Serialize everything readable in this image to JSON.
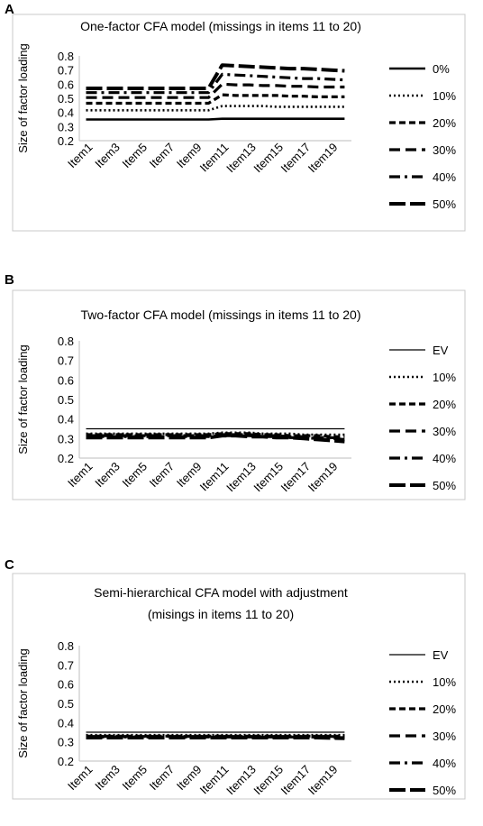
{
  "panels": [
    {
      "letter": "A"
    },
    {
      "letter": "B"
    },
    {
      "letter": "C"
    }
  ],
  "chart_data": [
    {
      "type": "line",
      "title": "One-factor CFA model (missings in items 11 to 20)",
      "title_lines": [
        "One-factor CFA model (missings in items 11 to 20)"
      ],
      "ylabel": "Size of factor loading",
      "xlabel": "",
      "ylim": [
        0.2,
        0.8
      ],
      "yticks": [
        "0.2",
        "0.3",
        "0.4",
        "0.5",
        "0.6",
        "0.7",
        "0.8"
      ],
      "categories": [
        "Item1",
        "Item2",
        "Item3",
        "Item4",
        "Item5",
        "Item6",
        "Item7",
        "Item8",
        "Item9",
        "Item10",
        "Item11",
        "Item12",
        "Item13",
        "Item14",
        "Item15",
        "Item16",
        "Item17",
        "Item18",
        "Item19",
        "Item20"
      ],
      "xtick_labels": [
        "Item1",
        "Item3",
        "Item5",
        "Item7",
        "Item9",
        "Item11",
        "Item13",
        "Item15",
        "Item17",
        "Item19"
      ],
      "grid": false,
      "legend_position": "right",
      "series": [
        {
          "name": "0%",
          "style": "solid",
          "values": [
            0.35,
            0.35,
            0.35,
            0.35,
            0.35,
            0.35,
            0.35,
            0.35,
            0.35,
            0.35,
            0.355,
            0.355,
            0.355,
            0.355,
            0.355,
            0.355,
            0.355,
            0.355,
            0.355,
            0.355
          ]
        },
        {
          "name": "10%",
          "style": "dotted",
          "values": [
            0.415,
            0.415,
            0.415,
            0.415,
            0.415,
            0.415,
            0.415,
            0.415,
            0.415,
            0.415,
            0.445,
            0.445,
            0.445,
            0.445,
            0.44,
            0.44,
            0.44,
            0.44,
            0.44,
            0.44
          ]
        },
        {
          "name": "20%",
          "style": "dashed",
          "values": [
            0.465,
            0.465,
            0.465,
            0.465,
            0.465,
            0.465,
            0.465,
            0.465,
            0.465,
            0.465,
            0.525,
            0.52,
            0.52,
            0.52,
            0.52,
            0.515,
            0.515,
            0.51,
            0.51,
            0.51
          ]
        },
        {
          "name": "30%",
          "style": "longdash",
          "values": [
            0.505,
            0.505,
            0.505,
            0.505,
            0.505,
            0.505,
            0.505,
            0.505,
            0.505,
            0.505,
            0.6,
            0.595,
            0.595,
            0.59,
            0.59,
            0.585,
            0.585,
            0.58,
            0.58,
            0.58
          ]
        },
        {
          "name": "40%",
          "style": "dashdot",
          "values": [
            0.54,
            0.54,
            0.54,
            0.54,
            0.54,
            0.54,
            0.54,
            0.54,
            0.54,
            0.54,
            0.67,
            0.665,
            0.66,
            0.655,
            0.65,
            0.645,
            0.64,
            0.64,
            0.635,
            0.63
          ]
        },
        {
          "name": "50%",
          "style": "heavylong",
          "values": [
            0.57,
            0.57,
            0.57,
            0.57,
            0.57,
            0.57,
            0.57,
            0.57,
            0.57,
            0.57,
            0.735,
            0.73,
            0.725,
            0.72,
            0.715,
            0.71,
            0.71,
            0.705,
            0.7,
            0.695
          ]
        }
      ]
    },
    {
      "type": "line",
      "title": "Two-factor CFA model (missings in items 11 to 20)",
      "title_lines": [
        "Two-factor CFA model (missings in items 11 to 20)"
      ],
      "ylabel": "Size of factor loading",
      "xlabel": "",
      "ylim": [
        0.2,
        0.8
      ],
      "yticks": [
        "0.2",
        "0.3",
        "0.4",
        "0.5",
        "0.6",
        "0.7",
        "0.8"
      ],
      "categories": [
        "Item1",
        "Item2",
        "Item3",
        "Item4",
        "Item5",
        "Item6",
        "Item7",
        "Item8",
        "Item9",
        "Item10",
        "Item11",
        "Item12",
        "Item13",
        "Item14",
        "Item15",
        "Item16",
        "Item17",
        "Item18",
        "Item19",
        "Item20"
      ],
      "xtick_labels": [
        "Item1",
        "Item3",
        "Item5",
        "Item7",
        "Item9",
        "Item11",
        "Item13",
        "Item15",
        "Item17",
        "Item19"
      ],
      "grid": false,
      "legend_position": "right",
      "series": [
        {
          "name": "EV",
          "style": "thin",
          "values": [
            0.35,
            0.35,
            0.35,
            0.35,
            0.35,
            0.35,
            0.35,
            0.35,
            0.35,
            0.35,
            0.35,
            0.35,
            0.35,
            0.35,
            0.35,
            0.35,
            0.35,
            0.35,
            0.35,
            0.35
          ]
        },
        {
          "name": "10%",
          "style": "dotted",
          "values": [
            0.325,
            0.325,
            0.325,
            0.325,
            0.325,
            0.325,
            0.325,
            0.325,
            0.325,
            0.325,
            0.33,
            0.33,
            0.33,
            0.325,
            0.325,
            0.325,
            0.32,
            0.32,
            0.32,
            0.32
          ]
        },
        {
          "name": "20%",
          "style": "dashed",
          "values": [
            0.32,
            0.32,
            0.32,
            0.32,
            0.32,
            0.32,
            0.32,
            0.32,
            0.32,
            0.32,
            0.325,
            0.325,
            0.325,
            0.32,
            0.32,
            0.315,
            0.315,
            0.315,
            0.31,
            0.31
          ]
        },
        {
          "name": "30%",
          "style": "longdash",
          "values": [
            0.315,
            0.315,
            0.315,
            0.315,
            0.315,
            0.315,
            0.315,
            0.315,
            0.315,
            0.315,
            0.32,
            0.32,
            0.32,
            0.315,
            0.315,
            0.31,
            0.31,
            0.305,
            0.305,
            0.3
          ]
        },
        {
          "name": "40%",
          "style": "dashdot",
          "values": [
            0.31,
            0.31,
            0.31,
            0.31,
            0.31,
            0.31,
            0.31,
            0.31,
            0.31,
            0.31,
            0.315,
            0.315,
            0.315,
            0.31,
            0.31,
            0.305,
            0.305,
            0.3,
            0.3,
            0.295
          ]
        },
        {
          "name": "50%",
          "style": "heavylong",
          "values": [
            0.305,
            0.305,
            0.305,
            0.305,
            0.305,
            0.305,
            0.305,
            0.305,
            0.305,
            0.305,
            0.315,
            0.315,
            0.31,
            0.31,
            0.305,
            0.305,
            0.3,
            0.295,
            0.29,
            0.285
          ]
        }
      ]
    },
    {
      "type": "line",
      "title": "Semi-hierarchical CFA model with adjustment (misings in items 11 to 20)",
      "title_lines": [
        "Semi-hierarchical CFA model with adjustment",
        "(misings in items 11 to 20)"
      ],
      "ylabel": "Size of factor loading",
      "xlabel": "",
      "ylim": [
        0.2,
        0.8
      ],
      "yticks": [
        "0.2",
        "0.3",
        "0.4",
        "0.5",
        "0.6",
        "0.7",
        "0.8"
      ],
      "categories": [
        "Item1",
        "Item2",
        "Item3",
        "Item4",
        "Item5",
        "Item6",
        "Item7",
        "Item8",
        "Item9",
        "Item10",
        "Item11",
        "Item12",
        "Item13",
        "Item14",
        "Item15",
        "Item16",
        "Item17",
        "Item18",
        "Item19",
        "Item20"
      ],
      "xtick_labels": [
        "Item1",
        "Item3",
        "Item5",
        "Item7",
        "Item9",
        "Item11",
        "Item13",
        "Item15",
        "Item17",
        "Item19"
      ],
      "grid": false,
      "legend_position": "right",
      "series": [
        {
          "name": "EV",
          "style": "thin",
          "values": [
            0.35,
            0.35,
            0.35,
            0.35,
            0.35,
            0.35,
            0.35,
            0.35,
            0.35,
            0.35,
            0.35,
            0.35,
            0.35,
            0.35,
            0.35,
            0.35,
            0.35,
            0.35,
            0.35,
            0.35
          ]
        },
        {
          "name": "10%",
          "style": "dotted",
          "values": [
            0.335,
            0.335,
            0.335,
            0.335,
            0.335,
            0.335,
            0.335,
            0.335,
            0.335,
            0.335,
            0.335,
            0.335,
            0.335,
            0.335,
            0.335,
            0.335,
            0.335,
            0.335,
            0.335,
            0.335
          ]
        },
        {
          "name": "20%",
          "style": "dashed",
          "values": [
            0.33,
            0.33,
            0.33,
            0.33,
            0.33,
            0.33,
            0.33,
            0.33,
            0.33,
            0.33,
            0.33,
            0.33,
            0.33,
            0.33,
            0.33,
            0.33,
            0.33,
            0.33,
            0.33,
            0.33
          ]
        },
        {
          "name": "30%",
          "style": "longdash",
          "values": [
            0.328,
            0.328,
            0.328,
            0.328,
            0.328,
            0.328,
            0.328,
            0.328,
            0.328,
            0.328,
            0.328,
            0.328,
            0.328,
            0.328,
            0.328,
            0.328,
            0.328,
            0.328,
            0.328,
            0.325
          ]
        },
        {
          "name": "40%",
          "style": "dashdot",
          "values": [
            0.325,
            0.325,
            0.325,
            0.325,
            0.325,
            0.325,
            0.325,
            0.325,
            0.325,
            0.325,
            0.325,
            0.325,
            0.325,
            0.325,
            0.325,
            0.325,
            0.325,
            0.325,
            0.322,
            0.322
          ]
        },
        {
          "name": "50%",
          "style": "heavylong",
          "values": [
            0.322,
            0.322,
            0.322,
            0.322,
            0.322,
            0.322,
            0.322,
            0.322,
            0.322,
            0.322,
            0.322,
            0.322,
            0.322,
            0.322,
            0.322,
            0.322,
            0.322,
            0.322,
            0.32,
            0.318
          ]
        }
      ]
    }
  ]
}
